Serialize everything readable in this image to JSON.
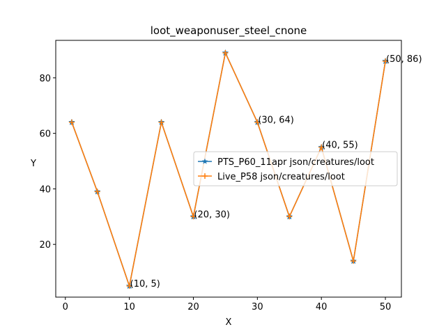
{
  "chart_data": {
    "type": "line",
    "title": "loot_weaponuser_steel_cnone",
    "xlabel": "X",
    "ylabel": "Y",
    "xlim": [
      -1.5,
      52.5
    ],
    "ylim": [
      1,
      93.5
    ],
    "xticks": [
      0,
      10,
      20,
      30,
      40,
      50
    ],
    "yticks": [
      20,
      40,
      60,
      80
    ],
    "grid": false,
    "legend_position": "center-right",
    "series": [
      {
        "name": "PTS_P60_11apr json/creatures/loot",
        "color": "#1f77b4",
        "marker": "star",
        "x": [
          1,
          5,
          10,
          15,
          20,
          25,
          30,
          35,
          40,
          45,
          50
        ],
        "y": [
          64,
          39,
          5,
          64,
          30,
          89,
          64,
          30,
          55,
          14,
          86
        ]
      },
      {
        "name": "Live_P58 json/creatures/loot",
        "color": "#ff7f0e",
        "marker": "plus",
        "x": [
          1,
          5,
          10,
          15,
          20,
          25,
          30,
          35,
          40,
          45,
          50
        ],
        "y": [
          64,
          39,
          5,
          64,
          30,
          89,
          64,
          30,
          55,
          14,
          86
        ]
      }
    ],
    "annotations": [
      {
        "x": 10,
        "y": 5,
        "text": "(10, 5)"
      },
      {
        "x": 20,
        "y": 30,
        "text": "(20, 30)"
      },
      {
        "x": 30,
        "y": 64,
        "text": "(30, 64)"
      },
      {
        "x": 40,
        "y": 55,
        "text": "(40, 55)"
      },
      {
        "x": 50,
        "y": 86,
        "text": "(50, 86)"
      }
    ]
  }
}
